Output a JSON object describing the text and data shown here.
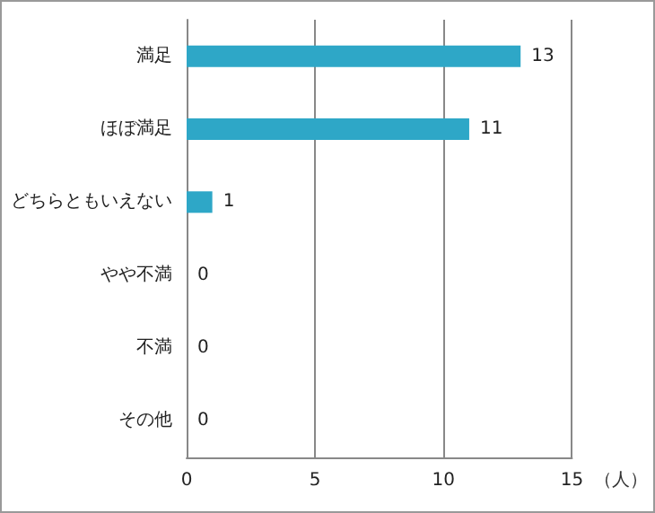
{
  "chart_data": {
    "type": "bar",
    "orientation": "horizontal",
    "categories": [
      "満足",
      "ほぼ満足",
      "どちらともいえない",
      "やや不満",
      "不満",
      "その他"
    ],
    "values": [
      13,
      11,
      1,
      0,
      0,
      0
    ],
    "color": "#2ea7c7",
    "xlabel": "（人）",
    "xlim": [
      0,
      15
    ],
    "xticks": [
      0,
      5,
      10,
      15
    ],
    "grid": "x",
    "data_labels": true
  }
}
